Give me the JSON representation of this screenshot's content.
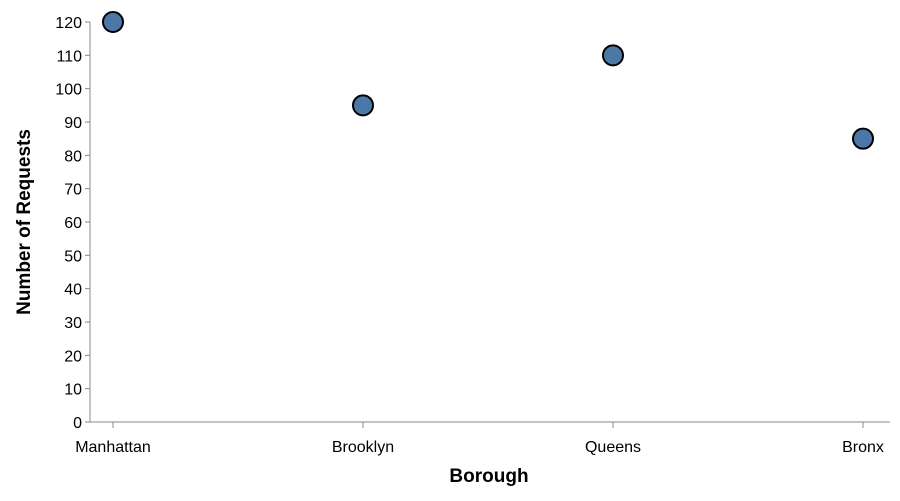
{
  "chart_data": {
    "type": "scatter",
    "categories": [
      "Manhattan",
      "Brooklyn",
      "Queens",
      "Bronx"
    ],
    "values": [
      120,
      95,
      110,
      85
    ],
    "xlabel": "Borough",
    "ylabel": "Number of Requests",
    "ylim": [
      0,
      120
    ],
    "yticks": [
      0,
      10,
      20,
      30,
      40,
      50,
      60,
      70,
      80,
      90,
      100,
      110,
      120
    ],
    "grid": false,
    "legend": "none",
    "point_color": "#4c78a8",
    "point_stroke": "#000000",
    "axis_color": "#888888"
  }
}
